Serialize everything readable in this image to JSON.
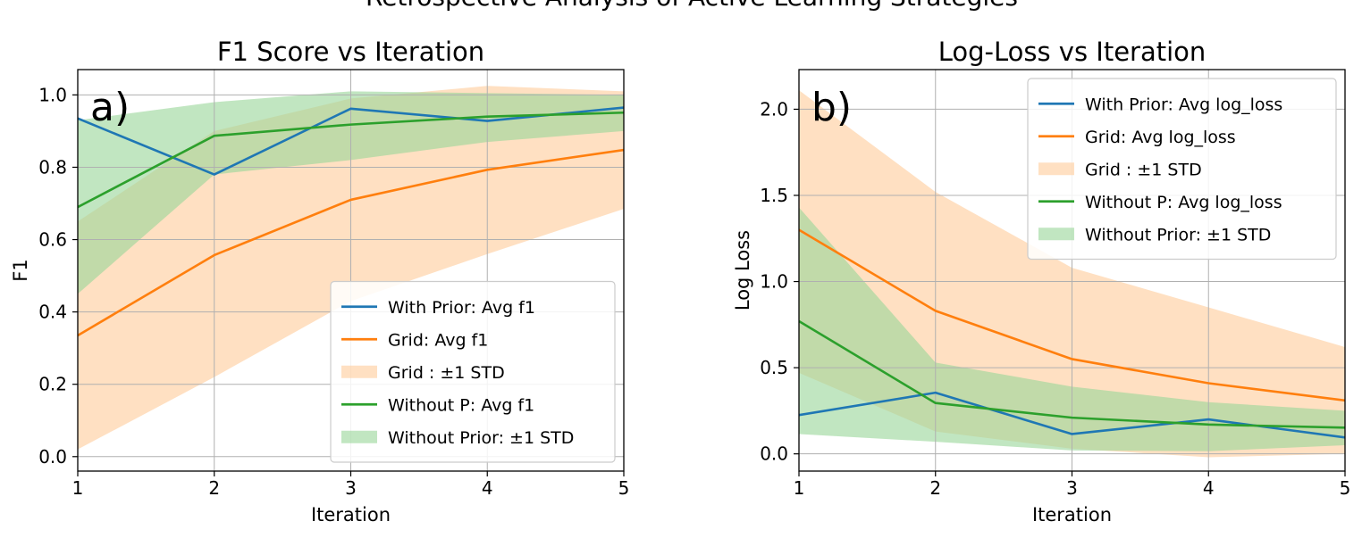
{
  "figure_title": "Retrospective Analysis of Active Learning Strategies",
  "colors": {
    "with_prior": "#1f77b4",
    "grid": "#ff7f0e",
    "without_prior": "#2ca02c",
    "grid_band": "#ffcc99",
    "without_band": "#98d598"
  },
  "chart_data": [
    {
      "type": "line",
      "panel_label": "a)",
      "title": "F1 Score vs Iteration",
      "xlabel": "Iteration",
      "ylabel": "F1",
      "xlim": [
        1,
        5
      ],
      "ylim": [
        -0.04,
        1.07
      ],
      "xticks": [
        1,
        2,
        3,
        4,
        5
      ],
      "yticks": [
        0.0,
        0.2,
        0.4,
        0.6,
        0.8,
        1.0
      ],
      "ytick_labels": [
        "0.0",
        "0.2",
        "0.4",
        "0.6",
        "0.8",
        "1.0"
      ],
      "grid": true,
      "legend_position": "lower-right",
      "x": [
        1,
        2,
        3,
        4,
        5
      ],
      "series": [
        {
          "name": "With Prior: Avg f1",
          "kind": "line",
          "color": "#1f77b4",
          "values": [
            0.935,
            0.78,
            0.962,
            0.928,
            0.965
          ]
        },
        {
          "name": "Grid: Avg f1",
          "kind": "line",
          "color": "#ff7f0e",
          "values": [
            0.335,
            0.557,
            0.71,
            0.793,
            0.848
          ]
        },
        {
          "name": "Grid : ±1 STD",
          "kind": "band",
          "color": "#ffcc99",
          "lower": [
            0.02,
            0.22,
            0.43,
            0.56,
            0.685
          ],
          "upper": [
            0.65,
            0.9,
            0.99,
            1.025,
            1.01
          ]
        },
        {
          "name": "Without P: Avg f1",
          "kind": "line",
          "color": "#2ca02c",
          "values": [
            0.69,
            0.887,
            0.918,
            0.94,
            0.951
          ]
        },
        {
          "name": "Without Prior: ±1 STD",
          "kind": "band",
          "color": "#98d598",
          "lower": [
            0.45,
            0.78,
            0.82,
            0.87,
            0.9
          ],
          "upper": [
            0.93,
            0.98,
            1.01,
            1.005,
            1.0
          ]
        }
      ]
    },
    {
      "type": "line",
      "panel_label": "b)",
      "title": "Log-Loss vs Iteration",
      "xlabel": "Iteration",
      "ylabel": "Log Loss",
      "xlim": [
        1,
        5
      ],
      "ylim": [
        -0.1,
        2.23
      ],
      "xticks": [
        1,
        2,
        3,
        4,
        5
      ],
      "yticks": [
        0.0,
        0.5,
        1.0,
        1.5,
        2.0
      ],
      "ytick_labels": [
        "0.0",
        "0.5",
        "1.0",
        "1.5",
        "2.0"
      ],
      "grid": true,
      "legend_position": "top-right",
      "x": [
        1,
        2,
        3,
        4,
        5
      ],
      "series": [
        {
          "name": "With Prior: Avg log_loss",
          "kind": "line",
          "color": "#1f77b4",
          "values": [
            0.225,
            0.355,
            0.115,
            0.2,
            0.095
          ]
        },
        {
          "name": "Grid: Avg log_loss",
          "kind": "line",
          "color": "#ff7f0e",
          "values": [
            1.3,
            0.83,
            0.55,
            0.41,
            0.31
          ]
        },
        {
          "name": "Grid : ±1 STD",
          "kind": "band",
          "color": "#ffcc99",
          "lower": [
            0.47,
            0.13,
            0.03,
            -0.02,
            0.0
          ],
          "upper": [
            2.11,
            1.52,
            1.08,
            0.85,
            0.62
          ]
        },
        {
          "name": "Without P: Avg log_loss",
          "kind": "line",
          "color": "#2ca02c",
          "values": [
            0.77,
            0.295,
            0.21,
            0.17,
            0.152
          ]
        },
        {
          "name": "Without Prior: ±1 STD",
          "kind": "band",
          "color": "#98d598",
          "lower": [
            0.115,
            0.07,
            0.02,
            0.015,
            0.05
          ],
          "upper": [
            1.43,
            0.53,
            0.39,
            0.3,
            0.25
          ]
        }
      ]
    }
  ]
}
